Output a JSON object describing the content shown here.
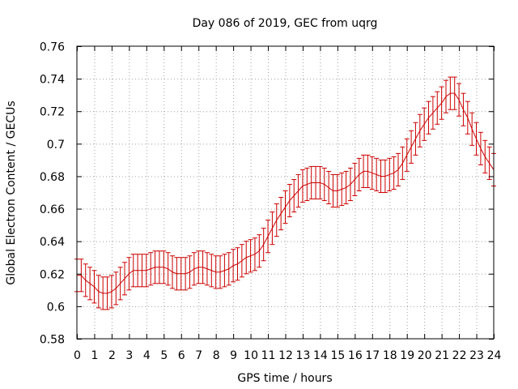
{
  "chart_data": {
    "type": "line",
    "title": "Day 086 of 2019, GEC from uqrg",
    "xlabel": "GPS time / hours",
    "ylabel": "Global Electron Content / GECUs",
    "xlim": [
      0,
      24
    ],
    "ylim": [
      0.58,
      0.76
    ],
    "x_ticks": [
      0,
      1,
      2,
      3,
      4,
      5,
      6,
      7,
      8,
      9,
      10,
      11,
      12,
      13,
      14,
      15,
      16,
      17,
      18,
      19,
      20,
      21,
      22,
      23,
      24
    ],
    "y_ticks": [
      0.58,
      0.6,
      0.62,
      0.64,
      0.66,
      0.68,
      0.7,
      0.72,
      0.74,
      0.76
    ],
    "y_tick_labels": [
      "0.58",
      "0.6",
      "0.62",
      "0.64",
      "0.66",
      "0.68",
      "0.7",
      "0.72",
      "0.74",
      "0.76"
    ],
    "grid": true,
    "series_color": "#cc0000",
    "error_half_width": 0.01,
    "series": [
      {
        "name": "GEC",
        "x": [
          0,
          0.25,
          0.5,
          0.75,
          1,
          1.25,
          1.5,
          1.75,
          2,
          2.25,
          2.5,
          2.75,
          3,
          3.25,
          3.5,
          3.75,
          4,
          4.25,
          4.5,
          4.75,
          5,
          5.25,
          5.5,
          5.75,
          6,
          6.25,
          6.5,
          6.75,
          7,
          7.25,
          7.5,
          7.75,
          8,
          8.25,
          8.5,
          8.75,
          9,
          9.25,
          9.5,
          9.75,
          10,
          10.25,
          10.5,
          10.75,
          11,
          11.25,
          11.5,
          11.75,
          12,
          12.25,
          12.5,
          12.75,
          13,
          13.25,
          13.5,
          13.75,
          14,
          14.25,
          14.5,
          14.75,
          15,
          15.25,
          15.5,
          15.75,
          16,
          16.25,
          16.5,
          16.75,
          17,
          17.25,
          17.5,
          17.75,
          18,
          18.25,
          18.5,
          18.75,
          19,
          19.25,
          19.5,
          19.75,
          20,
          20.25,
          20.5,
          20.75,
          21,
          21.25,
          21.5,
          21.75,
          22,
          22.25,
          22.5,
          22.75,
          23,
          23.25,
          23.5,
          23.75,
          24
        ],
        "values": [
          0.619,
          0.619,
          0.616,
          0.614,
          0.612,
          0.609,
          0.608,
          0.608,
          0.609,
          0.611,
          0.614,
          0.617,
          0.62,
          0.622,
          0.622,
          0.622,
          0.622,
          0.623,
          0.624,
          0.624,
          0.624,
          0.623,
          0.621,
          0.62,
          0.62,
          0.62,
          0.621,
          0.623,
          0.624,
          0.624,
          0.623,
          0.622,
          0.621,
          0.621,
          0.622,
          0.623,
          0.625,
          0.626,
          0.628,
          0.63,
          0.631,
          0.632,
          0.634,
          0.638,
          0.643,
          0.648,
          0.653,
          0.657,
          0.661,
          0.665,
          0.668,
          0.671,
          0.674,
          0.675,
          0.676,
          0.676,
          0.676,
          0.675,
          0.673,
          0.671,
          0.671,
          0.672,
          0.673,
          0.675,
          0.678,
          0.681,
          0.683,
          0.683,
          0.682,
          0.681,
          0.68,
          0.68,
          0.681,
          0.682,
          0.684,
          0.688,
          0.693,
          0.698,
          0.703,
          0.708,
          0.712,
          0.716,
          0.719,
          0.722,
          0.725,
          0.729,
          0.731,
          0.731,
          0.727,
          0.721,
          0.716,
          0.709,
          0.703,
          0.697,
          0.692,
          0.688,
          0.684
        ]
      }
    ]
  }
}
